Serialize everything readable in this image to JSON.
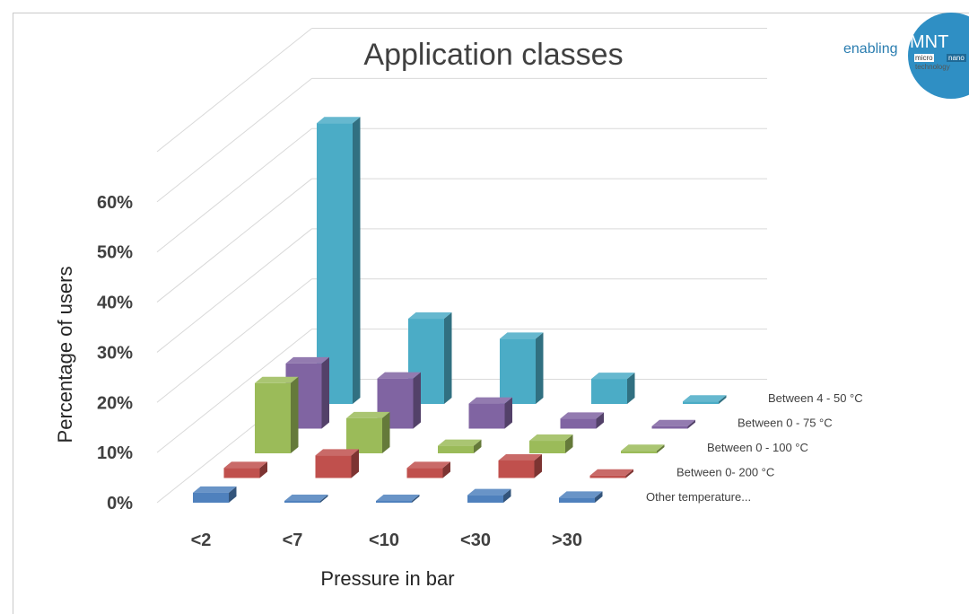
{
  "chart_data": {
    "type": "bar",
    "subtype": "3d-column",
    "title": "Application classes",
    "xlabel": "Pressure in bar",
    "ylabel": "Percentage of users",
    "categories": [
      "<2",
      "<7",
      "<10",
      "<30",
      ">30"
    ],
    "y_tick_labels": [
      "0%",
      "10%",
      "20%",
      "30%",
      "40%",
      "50%",
      "60%"
    ],
    "ylim": [
      0,
      0.7
    ],
    "grid": true,
    "series": [
      {
        "name": "Other temperature...",
        "color": "#4f81bd",
        "values": [
          0.02,
          0.0,
          0.0,
          0.015,
          0.01
        ]
      },
      {
        "name": "Between 0- 200 °C",
        "color": "#c0504d",
        "values": [
          0.02,
          0.045,
          0.02,
          0.035,
          0.005
        ]
      },
      {
        "name": "Between 0 - 100 °C",
        "color": "#9bbb59",
        "values": [
          0.14,
          0.07,
          0.015,
          0.025,
          0.005
        ]
      },
      {
        "name": "Between 0 - 75 °C",
        "color": "#8064a2",
        "values": [
          0.13,
          0.1,
          0.05,
          0.02,
          0.005
        ]
      },
      {
        "name": "Between 4 - 50 °C",
        "color": "#4bacc6",
        "values": [
          0.56,
          0.17,
          0.13,
          0.05,
          0.005
        ]
      }
    ]
  },
  "logo": {
    "word": "enabling",
    "mark": "MNT",
    "micro": "micro",
    "nano": "nano",
    "tech": "technology"
  }
}
